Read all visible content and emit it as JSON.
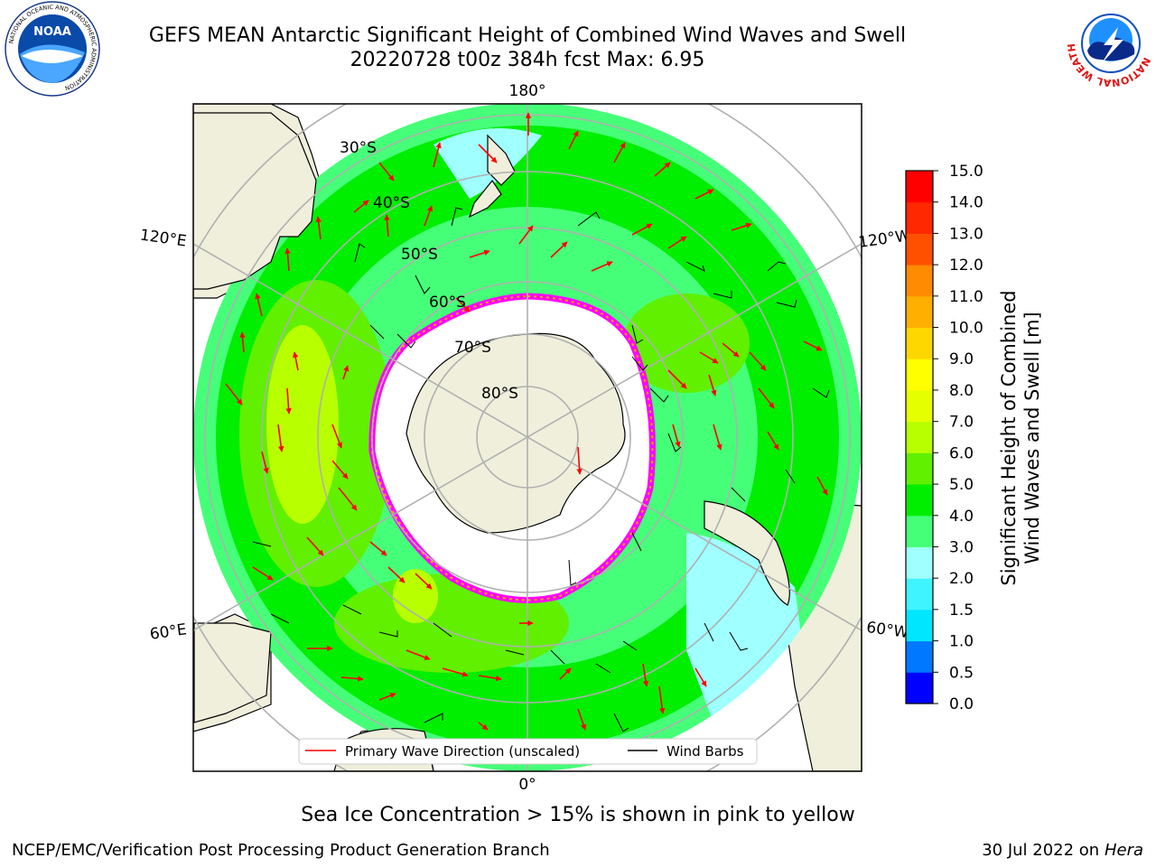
{
  "title_line1": "GEFS MEAN Antarctic Significant Height of Combined Wind Waves and Swell",
  "title_line2": "20220728 t00z 384h fcst   Max: 6.95",
  "map": {
    "longitude_labels": {
      "top": "180°",
      "bottom": "0°",
      "upper_left": "120°E",
      "upper_right": "120°W",
      "lower_left": "60°E",
      "lower_right": "60°W"
    },
    "latitude_labels": [
      "30°S",
      "40°S",
      "50°S",
      "60°S",
      "70°S",
      "80°S"
    ]
  },
  "legend": {
    "primary_wave": "Primary Wave Direction (unscaled)",
    "wind_barbs": "Wind Barbs"
  },
  "colorbar": {
    "title_line1": "Significant Height of Combined",
    "title_line2": "Wind Waves and Swell [m]",
    "ticks": [
      "0.0",
      "0.5",
      "1.0",
      "1.5",
      "2.0",
      "3.0",
      "4.0",
      "5.0",
      "6.0",
      "7.0",
      "8.0",
      "9.0",
      "10.0",
      "11.0",
      "12.0",
      "13.0",
      "14.0",
      "15.0"
    ],
    "colors": [
      "#0000ff",
      "#0078ff",
      "#00e6ff",
      "#3ff3ff",
      "#a0ffff",
      "#46ff78",
      "#00ee00",
      "#60f000",
      "#b8ff00",
      "#e6ff00",
      "#ffff00",
      "#ffd700",
      "#ffaf00",
      "#ff8c00",
      "#ff5000",
      "#ff2800",
      "#ff0000"
    ]
  },
  "sea_ice_note": "Sea Ice Concentration > 15% is shown in pink to yellow",
  "footer_left": "NCEP/EMC/Verification Post Processing Product Generation Branch",
  "footer_right_prefix": "30 Jul 2022 on ",
  "footer_right_italic": "Hera",
  "logos": {
    "left_text": "NOAA",
    "left_ring_text": "NATIONAL OCEANIC AND ATMOSPHERIC ADMINISTRATION",
    "right_ring_text": "NATIONAL WEATHER SERVICE"
  }
}
